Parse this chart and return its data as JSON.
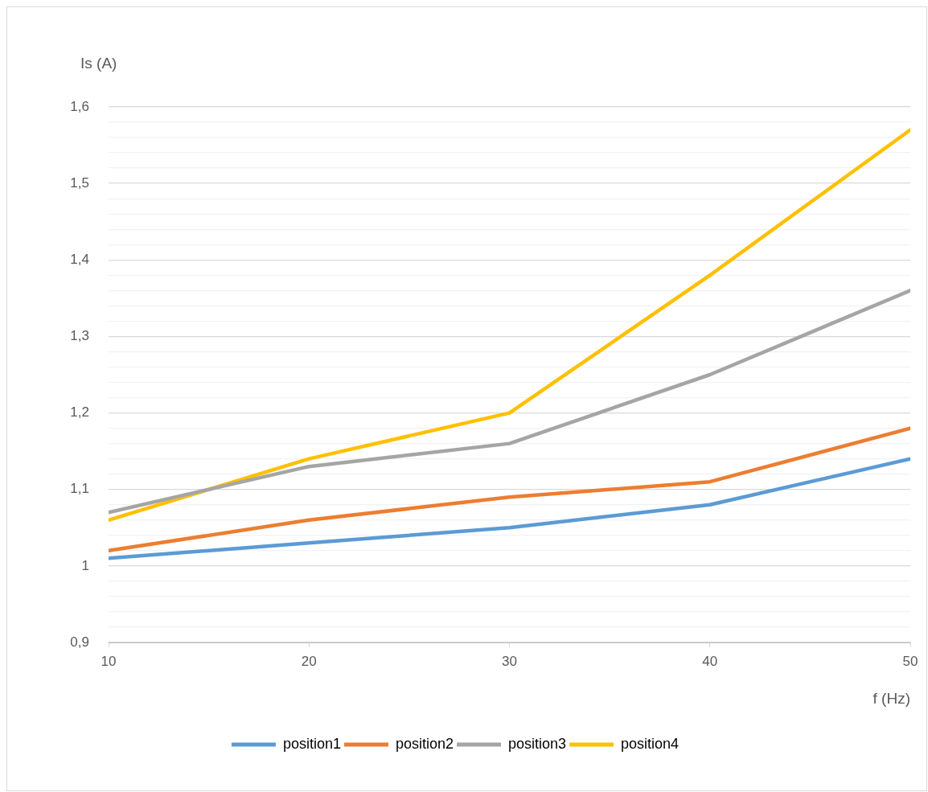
{
  "chart_data": {
    "type": "line",
    "xlabel": "f (Hz)",
    "ylabel": "Is (A)",
    "x": [
      10,
      20,
      30,
      40,
      50
    ],
    "series": [
      {
        "name": "position1",
        "color": "#5b9bd5",
        "values": [
          1.01,
          1.03,
          1.05,
          1.08,
          1.14
        ]
      },
      {
        "name": "position2",
        "color": "#ed7d31",
        "values": [
          1.02,
          1.06,
          1.09,
          1.11,
          1.18
        ]
      },
      {
        "name": "position3",
        "color": "#a5a5a5",
        "values": [
          1.07,
          1.13,
          1.16,
          1.25,
          1.36
        ]
      },
      {
        "name": "position4",
        "color": "#ffc000",
        "values": [
          1.06,
          1.14,
          1.2,
          1.38,
          1.57
        ]
      }
    ],
    "xlim": [
      10,
      50
    ],
    "xticks": [
      10,
      20,
      30,
      40,
      50
    ],
    "ylim": [
      0.9,
      1.6
    ],
    "yticks": [
      {
        "value": 0.9,
        "label": "0,9"
      },
      {
        "value": 0.92,
        "label": null
      },
      {
        "value": 0.94,
        "label": null
      },
      {
        "value": 0.96,
        "label": null
      },
      {
        "value": 0.98,
        "label": null
      },
      {
        "value": 1,
        "label": "1"
      },
      {
        "value": 1.02,
        "label": null
      },
      {
        "value": 1.04,
        "label": null
      },
      {
        "value": 1.06,
        "label": null
      },
      {
        "value": 1.08,
        "label": null
      },
      {
        "value": 1.1,
        "label": "1,1"
      },
      {
        "value": 1.12,
        "label": null
      },
      {
        "value": 1.14,
        "label": null
      },
      {
        "value": 1.16,
        "label": null
      },
      {
        "value": 1.18,
        "label": null
      },
      {
        "value": 1.2,
        "label": "1,2"
      },
      {
        "value": 1.22,
        "label": null
      },
      {
        "value": 1.24,
        "label": null
      },
      {
        "value": 1.26,
        "label": null
      },
      {
        "value": 1.28,
        "label": null
      },
      {
        "value": 1.3,
        "label": "1,3"
      },
      {
        "value": 1.32,
        "label": null
      },
      {
        "value": 1.34,
        "label": null
      },
      {
        "value": 1.36,
        "label": null
      },
      {
        "value": 1.38,
        "label": null
      },
      {
        "value": 1.4,
        "label": "1,4"
      },
      {
        "value": 1.42,
        "label": null
      },
      {
        "value": 1.44,
        "label": null
      },
      {
        "value": 1.46,
        "label": null
      },
      {
        "value": 1.48,
        "label": null
      },
      {
        "value": 1.5,
        "label": "1,5"
      },
      {
        "value": 1.52,
        "label": null
      },
      {
        "value": 1.54,
        "label": null
      },
      {
        "value": 1.56,
        "label": null
      },
      {
        "value": 1.58,
        "label": null
      },
      {
        "value": 1.6,
        "label": "1,6"
      }
    ],
    "grid": "y",
    "legend": "bottom",
    "marker": "none",
    "line_style": "solid"
  }
}
